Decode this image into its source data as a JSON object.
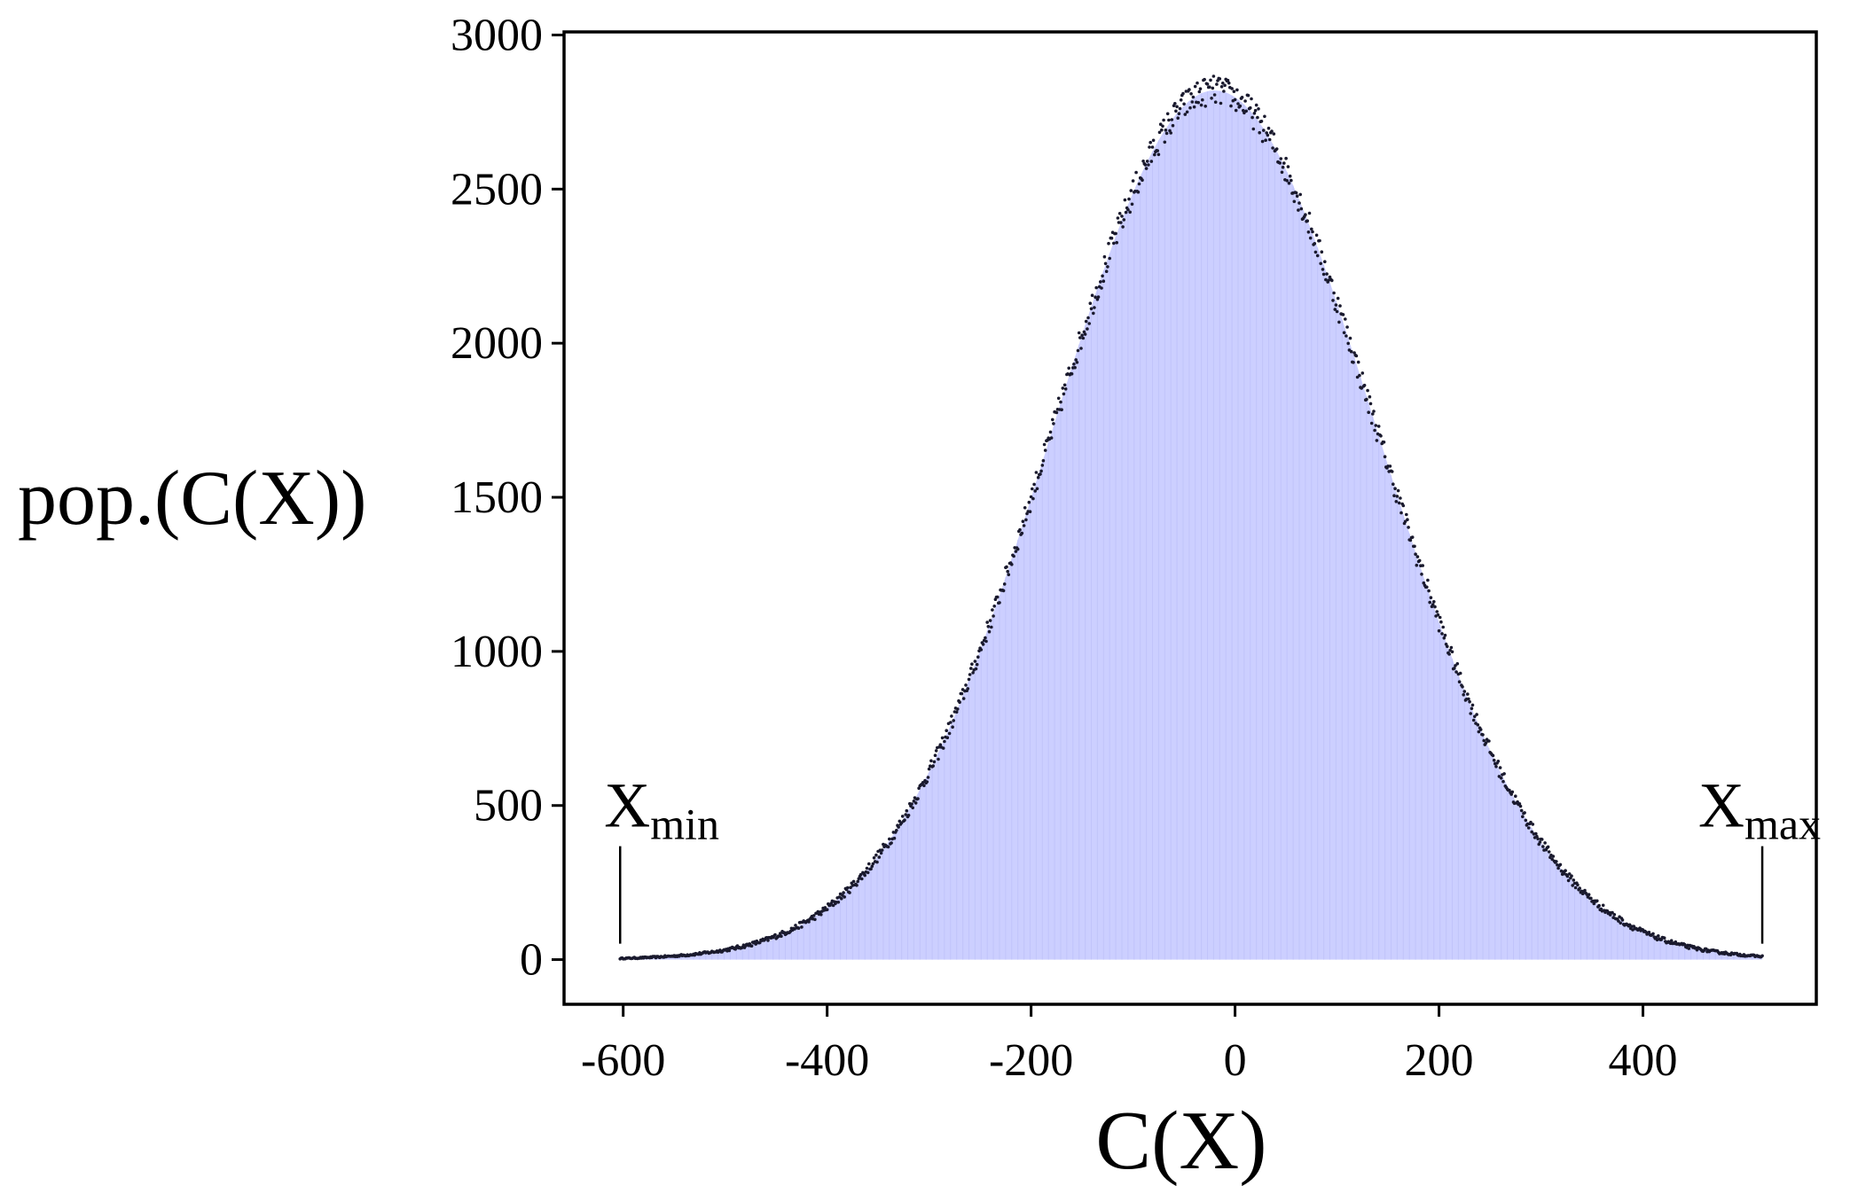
{
  "chart_data": {
    "type": "scatter",
    "title": "",
    "xlabel": "C(X)",
    "ylabel": "pop.(C(X))",
    "xlim": [
      -658,
      570
    ],
    "ylim": [
      -145,
      3010
    ],
    "xticks": [
      -600,
      -400,
      -200,
      0,
      200,
      400
    ],
    "yticks": [
      0,
      500,
      1000,
      1500,
      2000,
      2500,
      3000
    ],
    "xtick_labels": [
      "-600",
      "-400",
      "-200",
      "0",
      "200",
      "400"
    ],
    "ytick_labels": [
      "0",
      "500",
      "1000",
      "1500",
      "2000",
      "2500",
      "3000"
    ],
    "fill_color": "#cccfff",
    "point_color": "#1a1a2e",
    "grid": false,
    "series": [
      {
        "mean": -20,
        "std": 160,
        "peak": 2820,
        "x_start": -603,
        "x_end": 517,
        "x": [
          -600,
          -550,
          -500,
          -450,
          -400,
          -350,
          -300,
          -250,
          -200,
          -150,
          -100,
          -50,
          -20,
          0,
          50,
          100,
          150,
          200,
          250,
          300,
          350,
          400,
          450,
          500,
          517
        ],
        "y": [
          3,
          10,
          40,
          100,
          220,
          460,
          780,
          1160,
          1640,
          2100,
          2500,
          2780,
          2820,
          2800,
          2600,
          2250,
          1800,
          1290,
          840,
          500,
          250,
          110,
          40,
          12,
          6
        ]
      }
    ],
    "annotations": [
      {
        "base": "X",
        "sub": "min",
        "x": -603
      },
      {
        "base": "X",
        "sub": "max",
        "x": 517
      }
    ]
  }
}
